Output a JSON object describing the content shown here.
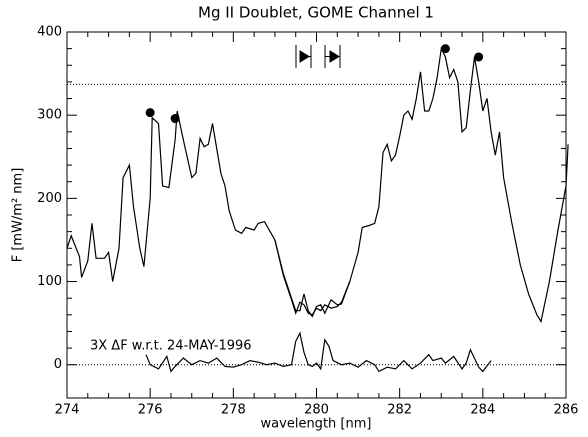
{
  "chart_data": {
    "type": "line",
    "title": "Mg II Doublet, GOME Channel 1",
    "xlabel": "wavelength [nm]",
    "ylabel": "F [mW/m² nm]",
    "annotation": "3X ΔF w.r.t. 24-MAY-1996",
    "xlim": [
      274,
      286
    ],
    "xticks": [
      274,
      276,
      278,
      280,
      282,
      284,
      286
    ],
    "ylim": [
      -40,
      400
    ],
    "yticks": [
      0,
      100,
      200,
      300,
      400
    ],
    "reference_lines": [
      337,
      0
    ],
    "color": "#000000",
    "series": [
      {
        "style": "line",
        "x": [
          274.0,
          274.1,
          274.3,
          274.35,
          274.5,
          274.6,
          274.7,
          274.9,
          275.0,
          275.1,
          275.25,
          275.35,
          275.5,
          275.6,
          275.75,
          275.85,
          276.0,
          276.05,
          276.2,
          276.3,
          276.45,
          276.6,
          276.65,
          276.8,
          277.0,
          277.1,
          277.2,
          277.3,
          277.4,
          277.5,
          277.7,
          277.8,
          277.9,
          278.05,
          278.2,
          278.3,
          278.5,
          278.6,
          278.75,
          279.0,
          279.2,
          279.4,
          279.5,
          279.6,
          279.7,
          279.8,
          279.9,
          280.0,
          280.1,
          280.2,
          280.35,
          280.5,
          280.6,
          280.8,
          281.0,
          281.1,
          281.3,
          281.4,
          281.5,
          281.6,
          281.7,
          281.8,
          281.9,
          282.0,
          282.1,
          282.2,
          282.3,
          282.4,
          282.5,
          282.6,
          282.7,
          282.8,
          282.9,
          283.0,
          283.1,
          283.2,
          283.3,
          283.4,
          283.5,
          283.6,
          283.7,
          283.8,
          283.9,
          284.0,
          284.1,
          284.2,
          284.3,
          284.4,
          284.5,
          284.7,
          284.9,
          285.1,
          285.3,
          285.4,
          285.6,
          285.8,
          286.0,
          286.05
        ],
        "values": [
          140,
          155,
          130,
          105,
          125,
          170,
          128,
          128,
          135,
          100,
          140,
          225,
          240,
          190,
          140,
          118,
          200,
          297,
          290,
          215,
          213,
          270,
          305,
          270,
          225,
          230,
          272,
          262,
          265,
          290,
          230,
          215,
          185,
          162,
          158,
          165,
          162,
          170,
          172,
          150,
          110,
          80,
          65,
          65,
          85,
          65,
          58,
          70,
          72,
          62,
          78,
          72,
          73,
          100,
          135,
          165,
          168,
          170,
          190,
          255,
          265,
          245,
          252,
          275,
          300,
          305,
          295,
          320,
          352,
          305,
          305,
          320,
          345,
          380,
          370,
          345,
          355,
          340,
          280,
          285,
          330,
          370,
          340,
          305,
          320,
          280,
          252,
          280,
          225,
          170,
          120,
          85,
          60,
          52,
          100,
          160,
          215,
          265
        ]
      },
      {
        "style": "line",
        "x": [
          279.0,
          279.2,
          279.4,
          279.5,
          279.6,
          279.7,
          279.8,
          279.9,
          280.0,
          280.1,
          280.2,
          280.35,
          280.5,
          280.6,
          280.8
        ],
        "values": [
          150,
          108,
          78,
          62,
          75,
          72,
          62,
          60,
          68,
          65,
          72,
          68,
          70,
          75,
          100
        ]
      },
      {
        "style": "line",
        "x": [
          275.9,
          276.0,
          276.2,
          276.4,
          276.5,
          276.6,
          276.8,
          277.0,
          277.2,
          277.4,
          277.6,
          277.8,
          278.0,
          278.2,
          278.4,
          278.6,
          278.8,
          279.0,
          279.2,
          279.4,
          279.5,
          279.6,
          279.7,
          279.8,
          279.9,
          280.0,
          280.1,
          280.2,
          280.3,
          280.4,
          280.6,
          280.8,
          281.0,
          281.2,
          281.4,
          281.5,
          281.7,
          281.9,
          282.1,
          282.3,
          282.5,
          282.7,
          282.8,
          283.0,
          283.1,
          283.3,
          283.5,
          283.6,
          283.7,
          283.9,
          284.0,
          284.2
        ],
        "values": [
          12,
          0,
          -5,
          10,
          -8,
          -2,
          8,
          0,
          5,
          2,
          8,
          -2,
          -3,
          0,
          5,
          3,
          0,
          2,
          -2,
          0,
          28,
          38,
          15,
          0,
          -2,
          2,
          -5,
          30,
          22,
          5,
          0,
          2,
          -3,
          5,
          0,
          -8,
          -3,
          -5,
          5,
          -5,
          2,
          12,
          5,
          8,
          2,
          10,
          -5,
          2,
          18,
          -3,
          -8,
          5
        ]
      },
      {
        "style": "points",
        "x": [
          276.0,
          276.6,
          283.1,
          283.9
        ],
        "values": [
          303,
          296,
          380,
          370
        ]
      }
    ]
  }
}
